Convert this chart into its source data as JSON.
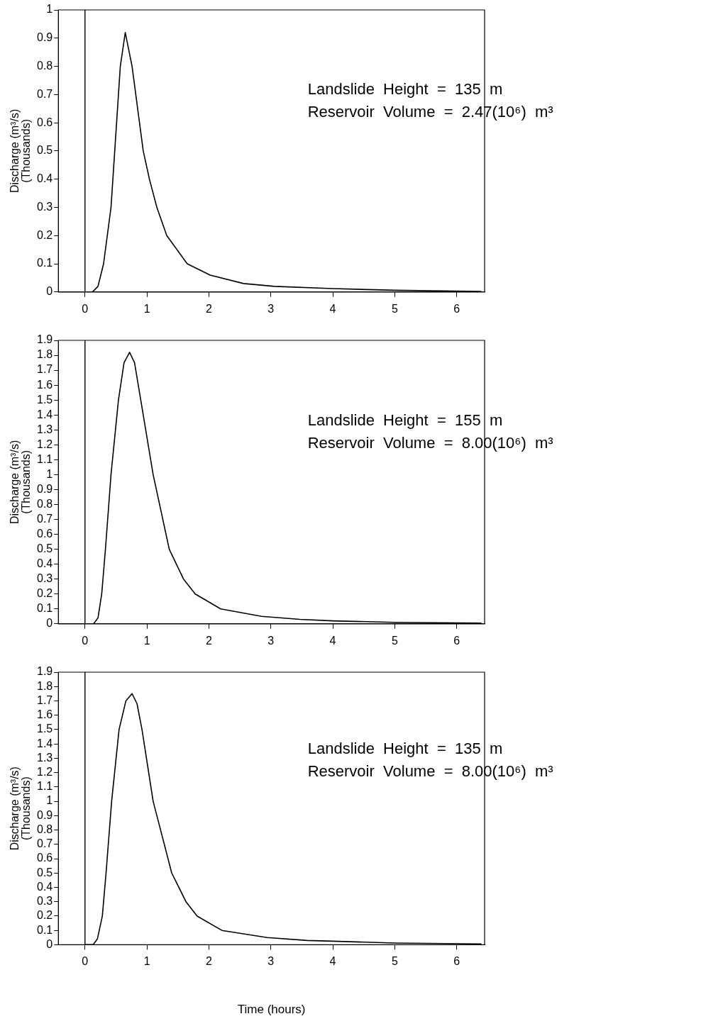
{
  "chart_data": [
    {
      "type": "line",
      "ylabel": "Discharge (m³/s)\n(Thousands)",
      "xlim": [
        -0.43,
        6.45
      ],
      "xticks": [
        0,
        1,
        2,
        3,
        4,
        5,
        6
      ],
      "ylim": [
        0,
        1
      ],
      "yticks": [
        0,
        0.1,
        0.2,
        0.3,
        0.4,
        0.5,
        0.6,
        0.7,
        0.8,
        0.9,
        1
      ],
      "grid": false,
      "legend": false,
      "marker": "none",
      "line_style": "solid",
      "ref_lines": [
        {
          "axis": "x",
          "value": 0,
          "color": "#000000"
        }
      ],
      "annotations": [
        "Landslide  Height  =  135  m",
        "Reservoir  Volume  =  2.47(10⁶)  m³"
      ],
      "series": [
        {
          "color": "#000000",
          "x": [
            0,
            0.12,
            0.21,
            0.3,
            0.42,
            0.51,
            0.57,
            0.65,
            0.76,
            0.88,
            0.94,
            1.04,
            1.16,
            1.32,
            1.65,
            2.02,
            2.56,
            3.06,
            4,
            5,
            6.4
          ],
          "values": [
            0,
            0,
            0.02,
            0.1,
            0.3,
            0.6,
            0.8,
            0.92,
            0.8,
            0.6,
            0.5,
            0.4,
            0.3,
            0.2,
            0.1,
            0.06,
            0.03,
            0.02,
            0.012,
            0.006,
            0.002
          ]
        }
      ]
    },
    {
      "type": "line",
      "ylabel": "Discharge (m³/s)\n(Thousands)",
      "xlim": [
        -0.43,
        6.45
      ],
      "xticks": [
        0,
        1,
        2,
        3,
        4,
        5,
        6
      ],
      "ylim": [
        0,
        1.9
      ],
      "yticks": [
        0,
        0.1,
        0.2,
        0.3,
        0.4,
        0.5,
        0.6,
        0.7,
        0.8,
        0.9,
        1,
        1.1,
        1.2,
        1.3,
        1.4,
        1.5,
        1.6,
        1.7,
        1.8,
        1.9
      ],
      "grid": false,
      "legend": false,
      "marker": "none",
      "line_style": "solid",
      "ref_lines": [
        {
          "axis": "x",
          "value": 0,
          "color": "#000000"
        }
      ],
      "annotations": [
        "Landslide  Height  =  155  m",
        "Reservoir  Volume  =  8.00(10⁶)  m³"
      ],
      "series": [
        {
          "color": "#000000",
          "x": [
            0,
            0.14,
            0.21,
            0.27,
            0.33,
            0.42,
            0.54,
            0.63,
            0.72,
            0.8,
            0.9,
            1.1,
            1.36,
            1.59,
            1.78,
            2.19,
            2.85,
            3.47,
            4,
            5,
            6.4
          ],
          "values": [
            0,
            0,
            0.04,
            0.2,
            0.5,
            1,
            1.5,
            1.75,
            1.82,
            1.75,
            1.5,
            1,
            0.5,
            0.3,
            0.2,
            0.1,
            0.05,
            0.03,
            0.02,
            0.01,
            0.005
          ]
        }
      ]
    },
    {
      "type": "line",
      "ylabel": "Discharge (m³/s)\n(Thousands)",
      "xlabel": "Time (hours)",
      "xlim": [
        -0.43,
        6.45
      ],
      "xticks": [
        0,
        1,
        2,
        3,
        4,
        5,
        6
      ],
      "ylim": [
        0,
        1.9
      ],
      "yticks": [
        0,
        0.1,
        0.2,
        0.3,
        0.4,
        0.5,
        0.6,
        0.7,
        0.8,
        0.9,
        1,
        1.1,
        1.2,
        1.3,
        1.4,
        1.5,
        1.6,
        1.7,
        1.8,
        1.9
      ],
      "grid": false,
      "legend": false,
      "marker": "none",
      "line_style": "solid",
      "ref_lines": [
        {
          "axis": "x",
          "value": 0,
          "color": "#000000"
        }
      ],
      "annotations": [
        "Landslide  Height  =  135  m",
        "Reservoir  Volume  =  8.00(10⁶)  m³"
      ],
      "series": [
        {
          "color": "#000000",
          "x": [
            0,
            0.13,
            0.2,
            0.28,
            0.34,
            0.43,
            0.55,
            0.66,
            0.76,
            0.84,
            0.92,
            1.1,
            1.4,
            1.63,
            1.81,
            2.21,
            2.94,
            3.59,
            4,
            5,
            6.4
          ],
          "values": [
            0,
            0,
            0.04,
            0.2,
            0.5,
            1,
            1.5,
            1.7,
            1.75,
            1.68,
            1.5,
            1,
            0.5,
            0.3,
            0.2,
            0.1,
            0.05,
            0.03,
            0.025,
            0.012,
            0.006
          ]
        }
      ]
    }
  ]
}
